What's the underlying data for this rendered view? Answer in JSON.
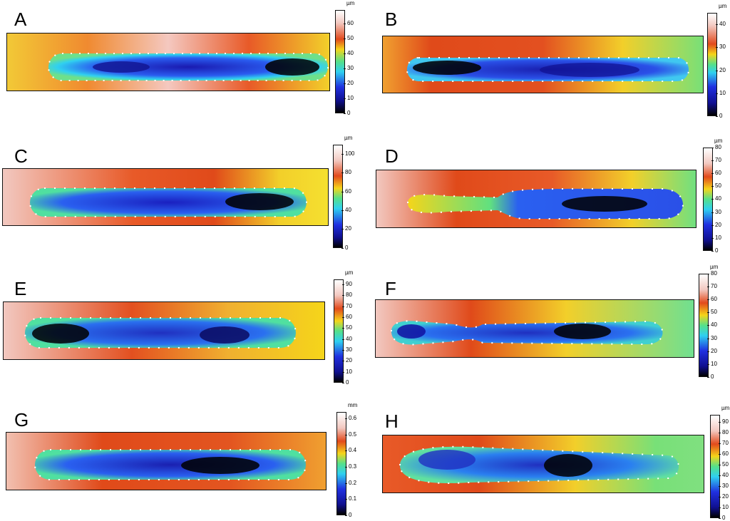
{
  "panels": [
    {
      "id": "A",
      "unit": "µm",
      "ticks": [
        "60",
        "50",
        "40",
        "30",
        "20",
        "10",
        "0"
      ],
      "max": 67
    },
    {
      "id": "B",
      "unit": "µm",
      "ticks": [
        "40",
        "30",
        "20",
        "10",
        "0"
      ],
      "max": 45
    },
    {
      "id": "C",
      "unit": "µm",
      "ticks": [
        "100",
        "80",
        "60",
        "40",
        "20",
        "0"
      ],
      "max": 110
    },
    {
      "id": "D",
      "unit": "µm",
      "ticks": [
        "80",
        "70",
        "60",
        "50",
        "40",
        "30",
        "20",
        "10",
        "0"
      ],
      "max": 80
    },
    {
      "id": "E",
      "unit": "µm",
      "ticks": [
        "90",
        "80",
        "70",
        "60",
        "50",
        "40",
        "30",
        "20",
        "10",
        "0"
      ],
      "max": 95
    },
    {
      "id": "F",
      "unit": "µm",
      "ticks": [
        "80",
        "70",
        "60",
        "50",
        "40",
        "30",
        "20",
        "10",
        "0"
      ],
      "max": 80
    },
    {
      "id": "G",
      "unit": "mm",
      "ticks": [
        "0.6",
        "0.5",
        "0.4",
        "0.3",
        "0.2",
        "0.1",
        "0"
      ],
      "max": 0.64
    },
    {
      "id": "H",
      "unit": "µm",
      "ticks": [
        "90",
        "80",
        "70",
        "60",
        "50",
        "40",
        "30",
        "20",
        "10",
        "0"
      ],
      "max": 97
    }
  ],
  "colors": {
    "scale_gradient": [
      "#ffffff",
      "#f4d0c8",
      "#e24a1c",
      "#f5d51a",
      "#55e08a",
      "#2fd0f0",
      "#2030e0",
      "#101090",
      "#000000"
    ]
  }
}
